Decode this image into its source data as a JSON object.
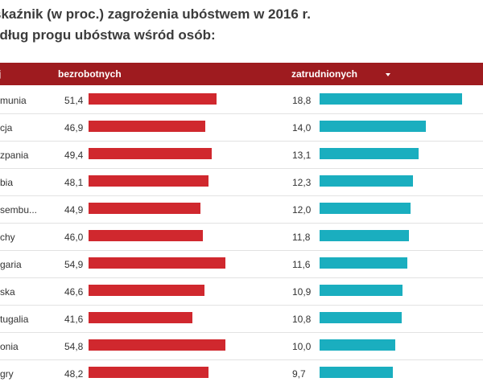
{
  "title": {
    "line1": "skaźnik (w proc.) zagrożenia ubóstwem w 2016 r.",
    "line2": "edług progu ubóstwa wśród osób:"
  },
  "header": {
    "country_label": "j",
    "unemployed_label": "bezrobotnych",
    "employed_label": "zatrudnionych"
  },
  "colors": {
    "header_bg": "#9e1b1f",
    "unemployed_bar": "#d0282e",
    "employed_bar": "#1aaebf"
  },
  "chart_data": {
    "type": "bar",
    "orientation": "horizontal",
    "categories": [
      "munia",
      "cja",
      "zpania",
      "bia",
      "sembu...",
      "chy",
      "garia",
      "ska",
      "tugalia",
      "onia",
      "gry"
    ],
    "series": [
      {
        "name": "bezrobotnych",
        "values": [
          51.4,
          46.9,
          49.4,
          48.1,
          44.9,
          46.0,
          54.9,
          46.6,
          41.6,
          54.8,
          48.2
        ],
        "labels": [
          "51,4",
          "46,9",
          "49,4",
          "48,1",
          "44,9",
          "46,0",
          "54,9",
          "46,6",
          "41,6",
          "54,8",
          "48,2"
        ]
      },
      {
        "name": "zatrudnionych",
        "values": [
          18.8,
          14.0,
          13.1,
          12.3,
          12.0,
          11.8,
          11.6,
          10.9,
          10.8,
          10.0,
          9.7
        ],
        "labels": [
          "18,8",
          "14,0",
          "13,1",
          "12,3",
          "12,0",
          "11,8",
          "11,6",
          "10,9",
          "10,8",
          "10,0",
          "9,7"
        ]
      }
    ],
    "sort": {
      "column": "zatrudnionych",
      "direction": "descending"
    }
  }
}
